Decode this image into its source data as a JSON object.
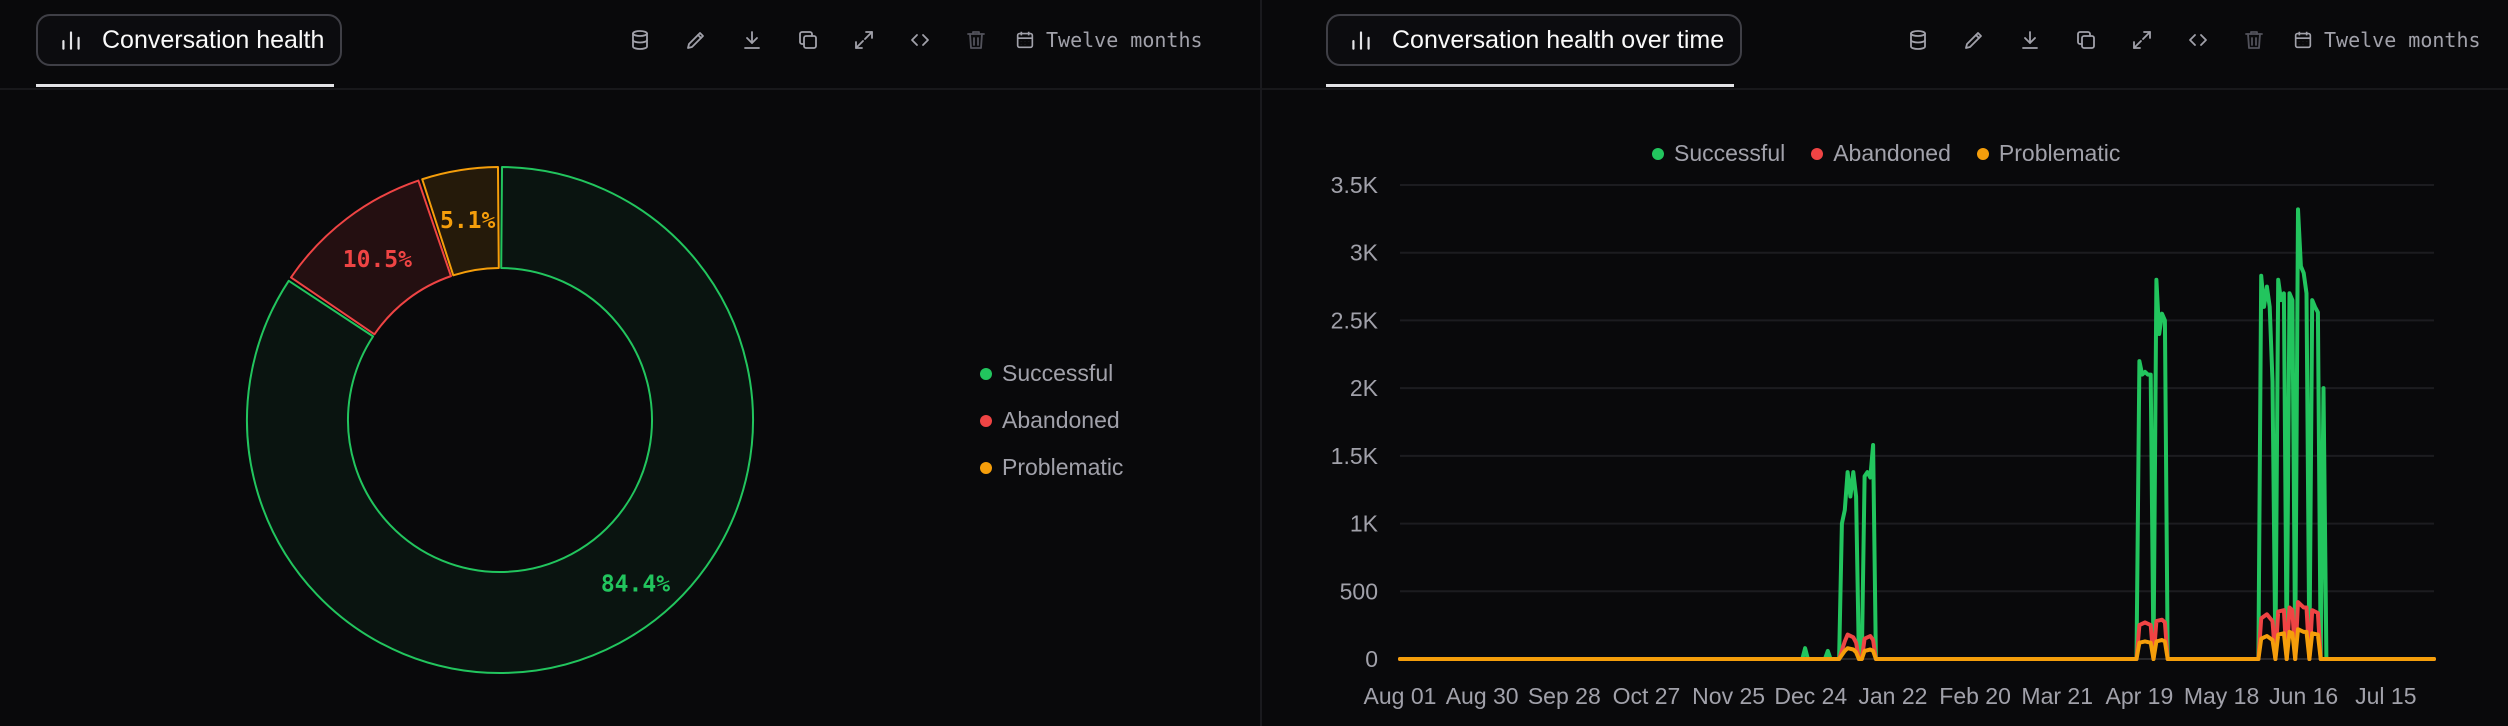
{
  "colors": {
    "successful": "#22c55e",
    "abandoned": "#ef4444",
    "problematic": "#f59e0b"
  },
  "left_panel": {
    "title": "Conversation health",
    "title_icon": "bar-chart-icon",
    "time_range": "Twelve months",
    "toolbar_icons": [
      "database-icon",
      "edit-icon",
      "download-icon",
      "copy-icon",
      "expand-icon",
      "code-icon",
      "trash-icon",
      "calendar-icon"
    ]
  },
  "right_panel": {
    "title": "Conversation health over time",
    "title_icon": "bar-chart-icon",
    "time_range": "Twelve months",
    "toolbar_icons": [
      "database-icon",
      "edit-icon",
      "download-icon",
      "copy-icon",
      "expand-icon",
      "code-icon",
      "trash-icon",
      "calendar-icon"
    ]
  },
  "chart_data": [
    {
      "type": "pie",
      "variant": "donut",
      "title": "Conversation health",
      "categories": [
        "Successful",
        "Abandoned",
        "Problematic"
      ],
      "values": [
        84.4,
        10.5,
        5.1
      ],
      "labels": [
        "84.4%",
        "10.5%",
        "5.1%"
      ],
      "legend_position": "right"
    },
    {
      "type": "line",
      "title": "Conversation health over time",
      "xlabel": "",
      "ylabel": "",
      "ylim": [
        0,
        3500
      ],
      "y_ticks": [
        0,
        500,
        1000,
        1500,
        2000,
        2500,
        3000,
        3500
      ],
      "y_tick_labels": [
        "0",
        "500",
        "1K",
        "1.5K",
        "2K",
        "2.5K",
        "3K",
        "3.5K"
      ],
      "x_tick_labels": [
        "Aug 01",
        "Aug 30",
        "Sep 28",
        "Oct 27",
        "Nov 25",
        "Dec 24",
        "Jan 22",
        "Feb 20",
        "Mar 21",
        "Apr 19",
        "May 18",
        "Jun 16",
        "Jul 15"
      ],
      "x_ticks": [
        "2024-08-01",
        "2024-08-30",
        "2024-09-28",
        "2024-10-27",
        "2024-11-25",
        "2024-12-24",
        "2025-01-22",
        "2025-02-20",
        "2025-03-21",
        "2025-04-19",
        "2025-05-18",
        "2025-06-16",
        "2025-07-15"
      ],
      "xlim": [
        "2024-08-01",
        "2025-08-01"
      ],
      "grid": true,
      "legend_position": "top",
      "series": [
        {
          "name": "Successful",
          "points": [
            [
              "2024-08-01",
              0
            ],
            [
              "2024-12-21",
              0
            ],
            [
              "2024-12-22",
              80
            ],
            [
              "2024-12-23",
              0
            ],
            [
              "2024-12-29",
              0
            ],
            [
              "2024-12-30",
              60
            ],
            [
              "2024-12-31",
              0
            ],
            [
              "2025-01-03",
              0
            ],
            [
              "2025-01-04",
              1000
            ],
            [
              "2025-01-05",
              1100
            ],
            [
              "2025-01-06",
              1380
            ],
            [
              "2025-01-07",
              1200
            ],
            [
              "2025-01-08",
              1380
            ],
            [
              "2025-01-09",
              1200
            ],
            [
              "2025-01-10",
              0
            ],
            [
              "2025-01-11",
              0
            ],
            [
              "2025-01-12",
              1350
            ],
            [
              "2025-01-13",
              1380
            ],
            [
              "2025-01-14",
              1340
            ],
            [
              "2025-01-15",
              1580
            ],
            [
              "2025-01-16",
              0
            ],
            [
              "2025-04-18",
              0
            ],
            [
              "2025-04-19",
              2200
            ],
            [
              "2025-04-20",
              2100
            ],
            [
              "2025-04-21",
              2120
            ],
            [
              "2025-04-22",
              2100
            ],
            [
              "2025-04-23",
              2100
            ],
            [
              "2025-04-24",
              0
            ],
            [
              "2025-04-25",
              2800
            ],
            [
              "2025-04-26",
              2400
            ],
            [
              "2025-04-27",
              2550
            ],
            [
              "2025-04-28",
              2500
            ],
            [
              "2025-04-29",
              0
            ],
            [
              "2025-05-31",
              0
            ],
            [
              "2025-06-01",
              2830
            ],
            [
              "2025-06-02",
              2600
            ],
            [
              "2025-06-03",
              2750
            ],
            [
              "2025-06-04",
              2600
            ],
            [
              "2025-06-05",
              2050
            ],
            [
              "2025-06-06",
              0
            ],
            [
              "2025-06-07",
              2800
            ],
            [
              "2025-06-08",
              2650
            ],
            [
              "2025-06-09",
              2700
            ],
            [
              "2025-06-10",
              0
            ],
            [
              "2025-06-11",
              2700
            ],
            [
              "2025-06-12",
              2650
            ],
            [
              "2025-06-13",
              0
            ],
            [
              "2025-06-14",
              3320
            ],
            [
              "2025-06-15",
              2900
            ],
            [
              "2025-06-16",
              2850
            ],
            [
              "2025-06-17",
              2700
            ],
            [
              "2025-06-18",
              0
            ],
            [
              "2025-06-19",
              2650
            ],
            [
              "2025-06-20",
              2600
            ],
            [
              "2025-06-21",
              2560
            ],
            [
              "2025-06-22",
              0
            ],
            [
              "2025-06-23",
              2000
            ],
            [
              "2025-06-24",
              0
            ],
            [
              "2025-08-01",
              0
            ]
          ]
        },
        {
          "name": "Abandoned",
          "points": [
            [
              "2024-08-01",
              0
            ],
            [
              "2025-01-03",
              0
            ],
            [
              "2025-01-05",
              130
            ],
            [
              "2025-01-06",
              180
            ],
            [
              "2025-01-08",
              160
            ],
            [
              "2025-01-09",
              120
            ],
            [
              "2025-01-10",
              0
            ],
            [
              "2025-01-11",
              0
            ],
            [
              "2025-01-12",
              150
            ],
            [
              "2025-01-14",
              170
            ],
            [
              "2025-01-15",
              140
            ],
            [
              "2025-01-16",
              0
            ],
            [
              "2025-04-18",
              0
            ],
            [
              "2025-04-19",
              250
            ],
            [
              "2025-04-21",
              270
            ],
            [
              "2025-04-23",
              250
            ],
            [
              "2025-04-24",
              0
            ],
            [
              "2025-04-25",
              280
            ],
            [
              "2025-04-27",
              290
            ],
            [
              "2025-04-28",
              270
            ],
            [
              "2025-04-29",
              0
            ],
            [
              "2025-05-31",
              0
            ],
            [
              "2025-06-01",
              300
            ],
            [
              "2025-06-03",
              330
            ],
            [
              "2025-06-05",
              280
            ],
            [
              "2025-06-06",
              0
            ],
            [
              "2025-06-07",
              350
            ],
            [
              "2025-06-09",
              360
            ],
            [
              "2025-06-10",
              0
            ],
            [
              "2025-06-11",
              380
            ],
            [
              "2025-06-12",
              360
            ],
            [
              "2025-06-13",
              0
            ],
            [
              "2025-06-14",
              420
            ],
            [
              "2025-06-16",
              380
            ],
            [
              "2025-06-17",
              380
            ],
            [
              "2025-06-18",
              0
            ],
            [
              "2025-06-19",
              360
            ],
            [
              "2025-06-21",
              340
            ],
            [
              "2025-06-22",
              0
            ],
            [
              "2025-08-01",
              0
            ]
          ]
        },
        {
          "name": "Problematic",
          "points": [
            [
              "2024-08-01",
              0
            ],
            [
              "2025-01-03",
              0
            ],
            [
              "2025-01-05",
              60
            ],
            [
              "2025-01-06",
              80
            ],
            [
              "2025-01-08",
              70
            ],
            [
              "2025-01-09",
              50
            ],
            [
              "2025-01-10",
              0
            ],
            [
              "2025-01-11",
              0
            ],
            [
              "2025-01-12",
              60
            ],
            [
              "2025-01-14",
              70
            ],
            [
              "2025-01-15",
              60
            ],
            [
              "2025-01-16",
              0
            ],
            [
              "2025-04-18",
              0
            ],
            [
              "2025-04-19",
              120
            ],
            [
              "2025-04-21",
              130
            ],
            [
              "2025-04-23",
              120
            ],
            [
              "2025-04-24",
              0
            ],
            [
              "2025-04-25",
              130
            ],
            [
              "2025-04-27",
              140
            ],
            [
              "2025-04-28",
              130
            ],
            [
              "2025-04-29",
              0
            ],
            [
              "2025-05-31",
              0
            ],
            [
              "2025-06-01",
              150
            ],
            [
              "2025-06-03",
              170
            ],
            [
              "2025-06-05",
              140
            ],
            [
              "2025-06-06",
              0
            ],
            [
              "2025-06-07",
              180
            ],
            [
              "2025-06-09",
              190
            ],
            [
              "2025-06-10",
              0
            ],
            [
              "2025-06-11",
              200
            ],
            [
              "2025-06-12",
              190
            ],
            [
              "2025-06-13",
              0
            ],
            [
              "2025-06-14",
              220
            ],
            [
              "2025-06-16",
              200
            ],
            [
              "2025-06-17",
              200
            ],
            [
              "2025-06-18",
              0
            ],
            [
              "2025-06-19",
              190
            ],
            [
              "2025-06-21",
              180
            ],
            [
              "2025-06-22",
              0
            ],
            [
              "2025-08-01",
              0
            ]
          ]
        }
      ]
    }
  ]
}
